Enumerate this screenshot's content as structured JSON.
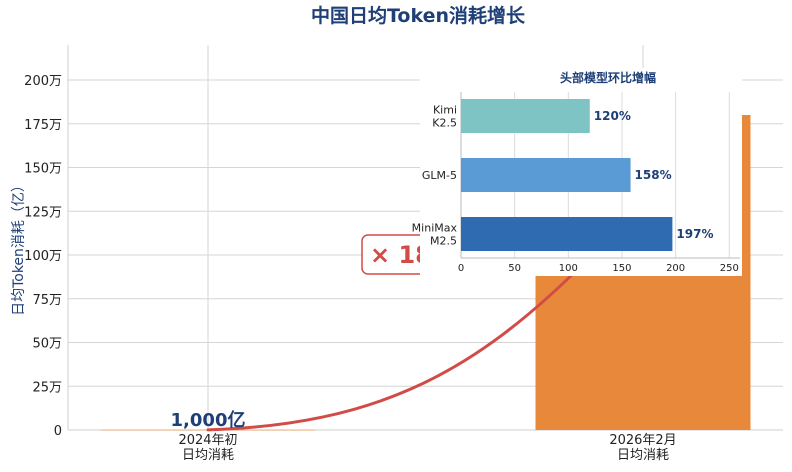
{
  "chart_data": [
    {
      "type": "bar",
      "title": "中国日均Token消耗增长",
      "ylabel": "日均Token消耗（亿）",
      "xlabel": "",
      "categories": [
        "2024年初\n日均消耗",
        "2026年2月\n日均消耗"
      ],
      "values": [
        1000,
        1800000
      ],
      "ylim": [
        0,
        2000000
      ],
      "yticks": [
        0,
        250000,
        500000,
        750000,
        1000000,
        1250000,
        1500000,
        1750000,
        2000000
      ],
      "ytick_labels": [
        "0",
        "25万",
        "50万",
        "75万",
        "100万",
        "125万",
        "150万",
        "175万",
        "200万"
      ],
      "annotations": {
        "start_label": "1,000亿",
        "multiplier": "× 1800倍"
      },
      "grid": true,
      "colors": {
        "bar": "#e8883a",
        "curve": "#d24c47",
        "title": "#1f3f77"
      }
    },
    {
      "type": "bar",
      "orientation": "horizontal",
      "title": "头部模型环比增幅",
      "categories": [
        "Kimi\nK2.5",
        "GLM-5",
        "MiniMax\nM2.5"
      ],
      "values": [
        120,
        158,
        197
      ],
      "value_labels": [
        "120%",
        "158%",
        "197%"
      ],
      "xlim": [
        0,
        260
      ],
      "xticks": [
        0,
        50,
        100,
        150,
        200,
        250
      ],
      "grid": true,
      "colors": [
        "#7fc4c4",
        "#5b9bd5",
        "#2e6bb0"
      ]
    }
  ]
}
